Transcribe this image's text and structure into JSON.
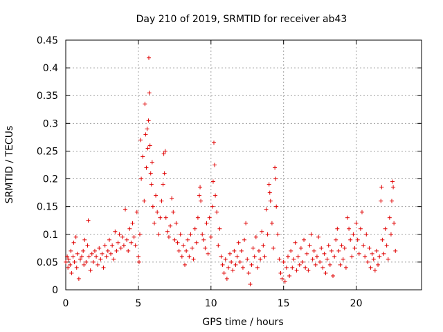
{
  "chart_data": {
    "type": "scatter",
    "title": "Day 210 of 2019, SRMTID for receiver ab43",
    "xlabel": "GPS time / hours",
    "ylabel": "SRMTID / TECUs",
    "xlim": [
      0,
      24.5
    ],
    "ylim": [
      0,
      0.45
    ],
    "x_ticks": [
      0,
      5,
      10,
      15,
      20
    ],
    "x_tick_labels": [
      "0",
      "5",
      "10",
      "15",
      "20"
    ],
    "y_ticks": [
      0,
      0.05,
      0.1,
      0.15,
      0.2,
      0.25,
      0.3,
      0.35,
      0.4,
      0.45
    ],
    "y_tick_labels": [
      "0",
      "0.05",
      "0.1",
      "0.15",
      "0.2",
      "0.25",
      "0.3",
      "0.35",
      "0.4",
      "0.45"
    ],
    "grid": true,
    "marker": "+",
    "color": "#e00000",
    "series": [
      {
        "name": "SRMTID",
        "points": [
          [
            0.0,
            0.05
          ],
          [
            0.1,
            0.06
          ],
          [
            0.15,
            0.04
          ],
          [
            0.2,
            0.055
          ],
          [
            0.3,
            0.045
          ],
          [
            0.35,
            0.07
          ],
          [
            0.4,
            0.03
          ],
          [
            0.5,
            0.06
          ],
          [
            0.55,
            0.085
          ],
          [
            0.6,
            0.05
          ],
          [
            0.7,
            0.095
          ],
          [
            0.75,
            0.04
          ],
          [
            0.8,
            0.065
          ],
          [
            0.9,
            0.02
          ],
          [
            1.0,
            0.055
          ],
          [
            1.1,
            0.06
          ],
          [
            1.2,
            0.07
          ],
          [
            1.25,
            0.045
          ],
          [
            1.3,
            0.09
          ],
          [
            1.4,
            0.05
          ],
          [
            1.5,
            0.08
          ],
          [
            1.55,
            0.125
          ],
          [
            1.6,
            0.06
          ],
          [
            1.7,
            0.035
          ],
          [
            1.8,
            0.065
          ],
          [
            1.9,
            0.05
          ],
          [
            2.0,
            0.07
          ],
          [
            2.1,
            0.06
          ],
          [
            2.2,
            0.045
          ],
          [
            2.3,
            0.075
          ],
          [
            2.4,
            0.055
          ],
          [
            2.5,
            0.065
          ],
          [
            2.6,
            0.04
          ],
          [
            2.7,
            0.08
          ],
          [
            2.8,
            0.06
          ],
          [
            2.9,
            0.07
          ],
          [
            3.0,
            0.09
          ],
          [
            3.1,
            0.065
          ],
          [
            3.2,
            0.08
          ],
          [
            3.3,
            0.055
          ],
          [
            3.4,
            0.105
          ],
          [
            3.5,
            0.07
          ],
          [
            3.6,
            0.085
          ],
          [
            3.7,
            0.1
          ],
          [
            3.8,
            0.075
          ],
          [
            3.9,
            0.095
          ],
          [
            4.0,
            0.08
          ],
          [
            4.1,
            0.145
          ],
          [
            4.2,
            0.09
          ],
          [
            4.3,
            0.07
          ],
          [
            4.4,
            0.11
          ],
          [
            4.5,
            0.085
          ],
          [
            4.6,
            0.12
          ],
          [
            4.7,
            0.095
          ],
          [
            4.8,
            0.08
          ],
          [
            4.9,
            0.14
          ],
          [
            5.0,
            0.06
          ],
          [
            5.05,
            0.05
          ],
          [
            5.1,
            0.1
          ],
          [
            5.15,
            0.27
          ],
          [
            5.2,
            0.2
          ],
          [
            5.3,
            0.24
          ],
          [
            5.4,
            0.16
          ],
          [
            5.45,
            0.335
          ],
          [
            5.5,
            0.28
          ],
          [
            5.55,
            0.22
          ],
          [
            5.6,
            0.29
          ],
          [
            5.65,
            0.255
          ],
          [
            5.7,
            0.305
          ],
          [
            5.72,
            0.418
          ],
          [
            5.75,
            0.355
          ],
          [
            5.8,
            0.26
          ],
          [
            5.85,
            0.21
          ],
          [
            5.9,
            0.19
          ],
          [
            5.95,
            0.23
          ],
          [
            6.0,
            0.15
          ],
          [
            6.1,
            0.12
          ],
          [
            6.2,
            0.17
          ],
          [
            6.3,
            0.14
          ],
          [
            6.4,
            0.1
          ],
          [
            6.5,
            0.13
          ],
          [
            6.6,
            0.16
          ],
          [
            6.7,
            0.19
          ],
          [
            6.75,
            0.245
          ],
          [
            6.8,
            0.21
          ],
          [
            6.85,
            0.25
          ],
          [
            6.9,
            0.13
          ],
          [
            7.0,
            0.105
          ],
          [
            7.1,
            0.095
          ],
          [
            7.2,
            0.115
          ],
          [
            7.3,
            0.165
          ],
          [
            7.4,
            0.14
          ],
          [
            7.5,
            0.09
          ],
          [
            7.6,
            0.12
          ],
          [
            7.7,
            0.085
          ],
          [
            7.8,
            0.07
          ],
          [
            7.9,
            0.1
          ],
          [
            8.0,
            0.06
          ],
          [
            8.1,
            0.08
          ],
          [
            8.2,
            0.045
          ],
          [
            8.3,
            0.07
          ],
          [
            8.4,
            0.09
          ],
          [
            8.5,
            0.06
          ],
          [
            8.6,
            0.1
          ],
          [
            8.7,
            0.075
          ],
          [
            8.8,
            0.055
          ],
          [
            8.9,
            0.11
          ],
          [
            9.0,
            0.085
          ],
          [
            9.1,
            0.13
          ],
          [
            9.2,
            0.17
          ],
          [
            9.25,
            0.185
          ],
          [
            9.3,
            0.16
          ],
          [
            9.4,
            0.1
          ],
          [
            9.5,
            0.09
          ],
          [
            9.6,
            0.075
          ],
          [
            9.7,
            0.12
          ],
          [
            9.8,
            0.065
          ],
          [
            9.9,
            0.13
          ],
          [
            10.0,
            0.095
          ],
          [
            10.1,
            0.15
          ],
          [
            10.15,
            0.195
          ],
          [
            10.2,
            0.265
          ],
          [
            10.25,
            0.225
          ],
          [
            10.3,
            0.17
          ],
          [
            10.4,
            0.14
          ],
          [
            10.5,
            0.08
          ],
          [
            10.6,
            0.11
          ],
          [
            10.7,
            0.06
          ],
          [
            10.8,
            0.045
          ],
          [
            10.9,
            0.03
          ],
          [
            11.0,
            0.055
          ],
          [
            11.1,
            0.02
          ],
          [
            11.2,
            0.04
          ],
          [
            11.3,
            0.065
          ],
          [
            11.4,
            0.05
          ],
          [
            11.5,
            0.035
          ],
          [
            11.6,
            0.07
          ],
          [
            11.7,
            0.045
          ],
          [
            11.8,
            0.06
          ],
          [
            11.9,
            0.085
          ],
          [
            12.0,
            0.05
          ],
          [
            12.1,
            0.07
          ],
          [
            12.2,
            0.04
          ],
          [
            12.3,
            0.09
          ],
          [
            12.4,
            0.12
          ],
          [
            12.5,
            0.055
          ],
          [
            12.6,
            0.03
          ],
          [
            12.7,
            0.01
          ],
          [
            12.8,
            0.045
          ],
          [
            12.9,
            0.075
          ],
          [
            13.0,
            0.06
          ],
          [
            13.1,
            0.095
          ],
          [
            13.2,
            0.04
          ],
          [
            13.3,
            0.07
          ],
          [
            13.4,
            0.055
          ],
          [
            13.5,
            0.105
          ],
          [
            13.6,
            0.08
          ],
          [
            13.7,
            0.06
          ],
          [
            13.8,
            0.145
          ],
          [
            13.9,
            0.1
          ],
          [
            14.0,
            0.19
          ],
          [
            14.05,
            0.175
          ],
          [
            14.1,
            0.16
          ],
          [
            14.2,
            0.12
          ],
          [
            14.3,
            0.075
          ],
          [
            14.4,
            0.22
          ],
          [
            14.45,
            0.2
          ],
          [
            14.5,
            0.15
          ],
          [
            14.6,
            0.1
          ],
          [
            14.7,
            0.055
          ],
          [
            14.8,
            0.03
          ],
          [
            14.9,
            0.02
          ],
          [
            15.0,
            0.05
          ],
          [
            15.1,
            0.015
          ],
          [
            15.2,
            0.04
          ],
          [
            15.3,
            0.06
          ],
          [
            15.4,
            0.025
          ],
          [
            15.5,
            0.07
          ],
          [
            15.6,
            0.04
          ],
          [
            15.7,
            0.055
          ],
          [
            15.8,
            0.085
          ],
          [
            15.9,
            0.035
          ],
          [
            16.0,
            0.06
          ],
          [
            16.1,
            0.045
          ],
          [
            16.2,
            0.075
          ],
          [
            16.3,
            0.05
          ],
          [
            16.4,
            0.09
          ],
          [
            16.5,
            0.04
          ],
          [
            16.6,
            0.065
          ],
          [
            16.7,
            0.035
          ],
          [
            16.8,
            0.08
          ],
          [
            16.9,
            0.1
          ],
          [
            17.0,
            0.055
          ],
          [
            17.1,
            0.07
          ],
          [
            17.2,
            0.045
          ],
          [
            17.3,
            0.06
          ],
          [
            17.4,
            0.095
          ],
          [
            17.5,
            0.05
          ],
          [
            17.6,
            0.075
          ],
          [
            17.7,
            0.04
          ],
          [
            17.8,
            0.065
          ],
          [
            17.9,
            0.03
          ],
          [
            18.0,
            0.055
          ],
          [
            18.1,
            0.08
          ],
          [
            18.2,
            0.045
          ],
          [
            18.3,
            0.07
          ],
          [
            18.4,
            0.025
          ],
          [
            18.5,
            0.06
          ],
          [
            18.6,
            0.09
          ],
          [
            18.7,
            0.11
          ],
          [
            18.8,
            0.07
          ],
          [
            18.9,
            0.045
          ],
          [
            19.0,
            0.08
          ],
          [
            19.1,
            0.055
          ],
          [
            19.2,
            0.075
          ],
          [
            19.3,
            0.04
          ],
          [
            19.4,
            0.13
          ],
          [
            19.5,
            0.11
          ],
          [
            19.6,
            0.09
          ],
          [
            19.7,
            0.06
          ],
          [
            19.8,
            0.1
          ],
          [
            19.9,
            0.075
          ],
          [
            20.0,
            0.12
          ],
          [
            20.1,
            0.09
          ],
          [
            20.2,
            0.065
          ],
          [
            20.3,
            0.11
          ],
          [
            20.4,
            0.14
          ],
          [
            20.5,
            0.08
          ],
          [
            20.6,
            0.06
          ],
          [
            20.7,
            0.1
          ],
          [
            20.8,
            0.05
          ],
          [
            20.9,
            0.075
          ],
          [
            21.0,
            0.04
          ],
          [
            21.1,
            0.065
          ],
          [
            21.2,
            0.055
          ],
          [
            21.3,
            0.035
          ],
          [
            21.4,
            0.07
          ],
          [
            21.5,
            0.045
          ],
          [
            21.6,
            0.06
          ],
          [
            21.7,
            0.16
          ],
          [
            21.75,
            0.185
          ],
          [
            21.8,
            0.09
          ],
          [
            21.9,
            0.065
          ],
          [
            22.0,
            0.11
          ],
          [
            22.1,
            0.08
          ],
          [
            22.2,
            0.055
          ],
          [
            22.3,
            0.13
          ],
          [
            22.4,
            0.1
          ],
          [
            22.45,
            0.16
          ],
          [
            22.5,
            0.195
          ],
          [
            22.55,
            0.185
          ],
          [
            22.6,
            0.12
          ],
          [
            22.7,
            0.07
          ]
        ]
      }
    ]
  }
}
